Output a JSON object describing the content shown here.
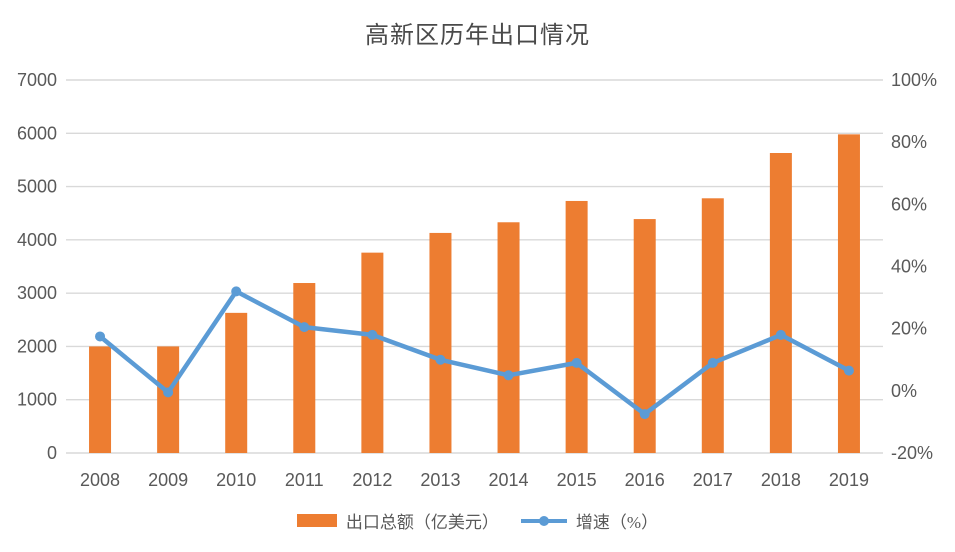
{
  "title": "高新区历年出口情况",
  "colors": {
    "bar": "#ED7D31",
    "line": "#5B9BD5",
    "grid": "#D9D9D9",
    "axis_text": "#595959",
    "title_text": "#4A4A4A"
  },
  "legend": {
    "bar_label": "出口总额（亿美元）",
    "line_label": "增速（%）"
  },
  "chart_data": {
    "type": "combo-bar-line",
    "title": "高新区历年出口情况",
    "categories": [
      "2008",
      "2009",
      "2010",
      "2011",
      "2012",
      "2013",
      "2014",
      "2015",
      "2016",
      "2017",
      "2018",
      "2019"
    ],
    "series": [
      {
        "name": "出口总额（亿美元）",
        "type": "bar",
        "axis": "left",
        "values": [
          2000,
          2000,
          2630,
          3190,
          3760,
          4130,
          4330,
          4730,
          4390,
          4780,
          5630,
          5980
        ]
      },
      {
        "name": "增速（%）",
        "type": "line",
        "axis": "right",
        "values": [
          17.5,
          -0.5,
          32,
          20.5,
          18,
          10,
          5,
          9,
          -7.5,
          9,
          18,
          6.5
        ]
      }
    ],
    "left_axis": {
      "min": 0,
      "max": 7000,
      "step": 1000,
      "tick_labels": [
        "0",
        "1000",
        "2000",
        "3000",
        "4000",
        "5000",
        "6000",
        "7000"
      ]
    },
    "right_axis": {
      "min": -20,
      "max": 100,
      "step": 20,
      "tick_labels": [
        "-20%",
        "0%",
        "20%",
        "40%",
        "60%",
        "80%",
        "100%"
      ]
    },
    "grid": "horizontal",
    "legend_position": "bottom"
  }
}
